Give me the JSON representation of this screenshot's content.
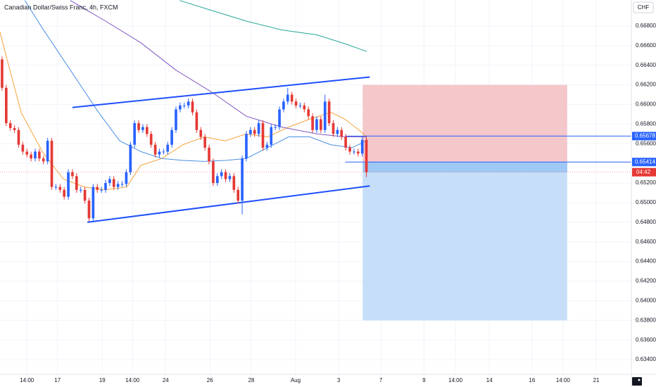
{
  "chart_data": {
    "type": "candlestick",
    "title": "Canadian Dollar/Swiss Franc, 4h, FXCM",
    "currency": "CHF",
    "up_color": "#2962ff",
    "down_color": "#e53935",
    "grid": true,
    "x": [
      0,
      1,
      2,
      3,
      4,
      5,
      6,
      7,
      8,
      9,
      10,
      11,
      12,
      13,
      14,
      15,
      16,
      17,
      18,
      19,
      20,
      21,
      22,
      23,
      24,
      25,
      26,
      27,
      28,
      29,
      30,
      31,
      32,
      33,
      34,
      35,
      36,
      37,
      38,
      39,
      40,
      41,
      42,
      43,
      44,
      45,
      46,
      47,
      48,
      49,
      50,
      51,
      52,
      53,
      54,
      55,
      56,
      57,
      58,
      59,
      60,
      61,
      62,
      63,
      64,
      65,
      66,
      67,
      68,
      69,
      70,
      71,
      72,
      73,
      74,
      75,
      76,
      77,
      78,
      79,
      80,
      81,
      82,
      83,
      84,
      85,
      86,
      87,
      88
    ],
    "open": [
      0.6646,
      0.6617,
      0.6581,
      0.6576,
      0.6574,
      0.6559,
      0.6552,
      0.6549,
      0.6545,
      0.6552,
      0.6545,
      0.6542,
      0.6563,
      0.6516,
      0.6516,
      0.6513,
      0.6506,
      0.6531,
      0.6527,
      0.6513,
      0.6513,
      0.6502,
      0.6484,
      0.6516,
      0.6513,
      0.6513,
      0.652,
      0.6524,
      0.6516,
      0.6519,
      0.6519,
      0.6531,
      0.6559,
      0.6581,
      0.6574,
      0.6577,
      0.657,
      0.6559,
      0.6549,
      0.6552,
      0.6552,
      0.6559,
      0.6574,
      0.6595,
      0.6599,
      0.6599,
      0.6603,
      0.6592,
      0.6574,
      0.6567,
      0.6556,
      0.6542,
      0.652,
      0.6527,
      0.6531,
      0.6524,
      0.6527,
      0.6513,
      0.6502,
      0.6545,
      0.657,
      0.6574,
      0.657,
      0.6581,
      0.6556,
      0.6559,
      0.6577,
      0.6577,
      0.6595,
      0.6603,
      0.661,
      0.6603,
      0.6599,
      0.6599,
      0.6595,
      0.6588,
      0.6574,
      0.6585,
      0.6574,
      0.6603,
      0.6581,
      0.657,
      0.6574,
      0.6567,
      0.6556,
      0.6552,
      0.6552,
      0.655,
      0.6564
    ],
    "high": [
      0.6649,
      0.662,
      0.6584,
      0.6579,
      0.6577,
      0.6562,
      0.6555,
      0.6552,
      0.6555,
      0.6555,
      0.6548,
      0.6566,
      0.6566,
      0.6519,
      0.6519,
      0.6516,
      0.6534,
      0.6534,
      0.653,
      0.6516,
      0.6516,
      0.6505,
      0.6519,
      0.6519,
      0.6516,
      0.6523,
      0.6527,
      0.6527,
      0.6522,
      0.6522,
      0.6534,
      0.6562,
      0.6584,
      0.6584,
      0.658,
      0.658,
      0.6573,
      0.6562,
      0.6555,
      0.6555,
      0.6562,
      0.6577,
      0.6598,
      0.6602,
      0.6602,
      0.6606,
      0.6606,
      0.6595,
      0.6577,
      0.657,
      0.6559,
      0.6545,
      0.653,
      0.6534,
      0.6534,
      0.653,
      0.653,
      0.6516,
      0.6548,
      0.6573,
      0.6577,
      0.6577,
      0.6584,
      0.6584,
      0.6562,
      0.658,
      0.658,
      0.6598,
      0.6606,
      0.6617,
      0.6613,
      0.6606,
      0.6602,
      0.6602,
      0.6598,
      0.6591,
      0.6588,
      0.6588,
      0.661,
      0.6606,
      0.6584,
      0.6577,
      0.6577,
      0.657,
      0.6559,
      0.6555,
      0.6555,
      0.6567,
      0.6567
    ],
    "low": [
      0.6614,
      0.6578,
      0.6573,
      0.6571,
      0.6556,
      0.6549,
      0.6546,
      0.6542,
      0.6542,
      0.6542,
      0.6539,
      0.6539,
      0.6513,
      0.6513,
      0.651,
      0.6503,
      0.6503,
      0.6524,
      0.651,
      0.651,
      0.6499,
      0.6481,
      0.6481,
      0.651,
      0.651,
      0.651,
      0.6517,
      0.6513,
      0.6513,
      0.6516,
      0.6516,
      0.6528,
      0.6556,
      0.6571,
      0.6571,
      0.6567,
      0.6556,
      0.6546,
      0.6546,
      0.6549,
      0.6549,
      0.6556,
      0.6571,
      0.6592,
      0.6596,
      0.6596,
      0.6589,
      0.6571,
      0.6564,
      0.6553,
      0.6539,
      0.6517,
      0.6517,
      0.6524,
      0.6521,
      0.6521,
      0.651,
      0.6499,
      0.6488,
      0.6542,
      0.6567,
      0.6567,
      0.6567,
      0.6553,
      0.6553,
      0.6556,
      0.6574,
      0.6574,
      0.6592,
      0.66,
      0.66,
      0.6596,
      0.6596,
      0.6592,
      0.6585,
      0.6571,
      0.6571,
      0.6571,
      0.6571,
      0.6578,
      0.6567,
      0.6567,
      0.6564,
      0.6553,
      0.6549,
      0.6549,
      0.6547,
      0.6547,
      0.6526
    ],
    "close": [
      0.6617,
      0.6581,
      0.6576,
      0.6574,
      0.6559,
      0.6552,
      0.6549,
      0.6545,
      0.6552,
      0.6545,
      0.6542,
      0.6563,
      0.6516,
      0.6516,
      0.6513,
      0.6506,
      0.6531,
      0.6527,
      0.6513,
      0.6513,
      0.6502,
      0.6484,
      0.6516,
      0.6513,
      0.6513,
      0.652,
      0.6524,
      0.6516,
      0.6519,
      0.6519,
      0.6531,
      0.6559,
      0.6581,
      0.6574,
      0.6577,
      0.657,
      0.6559,
      0.6549,
      0.6552,
      0.6552,
      0.6559,
      0.6574,
      0.6595,
      0.6599,
      0.6599,
      0.6603,
      0.6592,
      0.6574,
      0.6567,
      0.6556,
      0.6542,
      0.652,
      0.6527,
      0.6531,
      0.6524,
      0.6527,
      0.6513,
      0.6502,
      0.6545,
      0.657,
      0.6574,
      0.657,
      0.6581,
      0.6556,
      0.6559,
      0.6577,
      0.6577,
      0.6595,
      0.6603,
      0.661,
      0.6603,
      0.6599,
      0.6599,
      0.6595,
      0.6588,
      0.6574,
      0.6585,
      0.6574,
      0.6603,
      0.6581,
      0.657,
      0.6574,
      0.6567,
      0.6556,
      0.6552,
      0.6552,
      0.655,
      0.6564,
      0.6531
    ],
    "xlim": [
      -0.5,
      152
    ],
    "xticks": [
      {
        "value": 6.0,
        "label": "14:00"
      },
      {
        "value": 13.4,
        "label": "17"
      },
      {
        "value": 24.2,
        "label": "19"
      },
      {
        "value": 31.5,
        "label": "14:00"
      },
      {
        "value": 39.5,
        "label": "24"
      },
      {
        "value": 50.2,
        "label": "26"
      },
      {
        "value": 60.2,
        "label": "28"
      },
      {
        "value": 70.9,
        "label": "Aug"
      },
      {
        "value": 81.3,
        "label": "3"
      },
      {
        "value": 91.5,
        "label": "7"
      },
      {
        "value": 101.9,
        "label": "9"
      },
      {
        "value": 109.5,
        "label": "14:00"
      },
      {
        "value": 117.7,
        "label": "14"
      },
      {
        "value": 128.0,
        "label": "16"
      },
      {
        "value": 135.5,
        "label": "14:00"
      },
      {
        "value": 143.5,
        "label": "21"
      }
    ],
    "ylim": [
      0.6325,
      0.67065
    ],
    "yticks": [
      {
        "value": 0.668,
        "label": "0.66800"
      },
      {
        "value": 0.666,
        "label": "0.66600"
      },
      {
        "value": 0.664,
        "label": "0.66400"
      },
      {
        "value": 0.662,
        "label": "0.66200"
      },
      {
        "value": 0.66,
        "label": "0.66000"
      },
      {
        "value": 0.658,
        "label": "0.65800"
      },
      {
        "value": 0.656,
        "label": "0.65600"
      },
      {
        "value": 0.654,
        "label": "0.65400"
      },
      {
        "value": 0.652,
        "label": "0.65200"
      },
      {
        "value": 0.65,
        "label": "0.65000"
      },
      {
        "value": 0.648,
        "label": "0.64800"
      },
      {
        "value": 0.646,
        "label": "0.64600"
      },
      {
        "value": 0.644,
        "label": "0.64400"
      },
      {
        "value": 0.642,
        "label": "0.64200"
      },
      {
        "value": 0.64,
        "label": "0.64000"
      },
      {
        "value": 0.638,
        "label": "0.63800"
      },
      {
        "value": 0.636,
        "label": "0.63600"
      },
      {
        "value": 0.634,
        "label": "0.63400"
      }
    ],
    "overlays": [
      {
        "color": "#f7a13a",
        "x": [
          -0.5,
          1.2,
          4.6,
          9.7,
          14.8,
          19.9,
          25,
          30.1,
          33.5,
          38.6,
          43.7,
          48.8,
          53.9,
          59,
          64.1,
          69.2,
          74.3,
          79.4,
          82.8,
          86.2,
          88.1
        ],
        "values": [
          0.6674,
          0.6646,
          0.6592,
          0.6552,
          0.6524,
          0.6516,
          0.6513,
          0.6516,
          0.6538,
          0.6545,
          0.6559,
          0.6567,
          0.6563,
          0.657,
          0.6567,
          0.6577,
          0.6585,
          0.6592,
          0.6585,
          0.6574,
          0.6567
        ]
      },
      {
        "color": "#4a90e2",
        "x": [
          5.5,
          9.7,
          16.5,
          23.3,
          28.4,
          33.5,
          38.6,
          43.7,
          48.8,
          53.9,
          59,
          64.1,
          69.2,
          74.3,
          79.4,
          84.5,
          88.1
        ],
        "values": [
          0.6706,
          0.6678,
          0.6635,
          0.6592,
          0.6563,
          0.6552,
          0.6545,
          0.6543,
          0.6542,
          0.6543,
          0.6545,
          0.6556,
          0.6567,
          0.6567,
          0.6559,
          0.6556,
          0.6563
        ]
      },
      {
        "color": "#7e57c2",
        "x": [
          16.5,
          25,
          33.5,
          42,
          50.5,
          59,
          67.5,
          76,
          82.8,
          88.1
        ],
        "values": [
          0.6706,
          0.6685,
          0.6663,
          0.6635,
          0.6613,
          0.6588,
          0.6577,
          0.657,
          0.6567,
          0.6567
        ]
      },
      {
        "color": "#26a69a",
        "x": [
          42.9,
          50.5,
          59,
          67.5,
          76,
          82.8,
          88.1
        ],
        "values": [
          0.6706,
          0.6696,
          0.6685,
          0.6676,
          0.6671,
          0.6662,
          0.6654
        ]
      }
    ],
    "trendlines": [
      {
        "color": "#1e4fff",
        "x": [
          17.0,
          88.8
        ],
        "values": [
          0.6597,
          0.6628
        ]
      },
      {
        "color": "#1e4fff",
        "x": [
          20.6,
          88.8
        ],
        "values": [
          0.648,
          0.6517
        ]
      }
    ],
    "position": {
      "x": [
        87.1,
        136.5
      ],
      "entry": 0.65414,
      "stop": 0.662,
      "target": 0.638,
      "stop_color": "#f4c7cb",
      "target_color": "#c6def8",
      "active_color": "#9ec8f5"
    },
    "levels": [
      {
        "value": 0.65678,
        "label": "0.65678",
        "color": "#2962ff"
      },
      {
        "value": 0.65414,
        "label": "0.65414",
        "color": "#2962ff"
      }
    ],
    "last_price_label": "04:42",
    "last_price_color": "#e53935"
  }
}
